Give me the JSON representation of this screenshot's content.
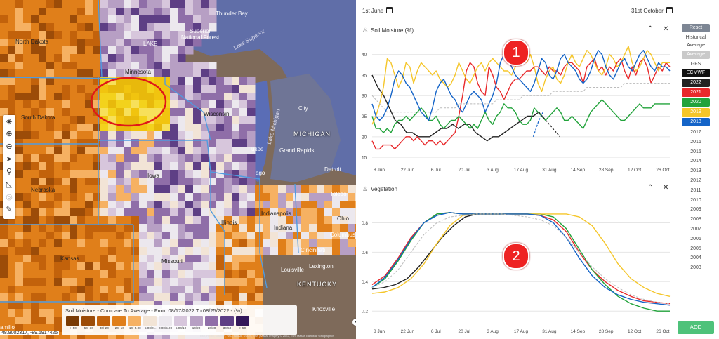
{
  "map": {
    "labels": {
      "thunder_bay": "Thunder Bay",
      "superior_forest": "Superior\nNational Forest",
      "lake_superior": "Lake Superior",
      "lake": "LAKE",
      "north_dakota": "North Dakota",
      "south_dakota": "South Dakota",
      "minnesota": "Minnesota",
      "wisconsin": "Wisconsin",
      "michigan": "MICHIGAN",
      "grand_rapids": "Grand Rapids",
      "lake_michigan": "Lake Michigan",
      "milwaukee": "ukee",
      "chicago": "ago",
      "iowa": "Iowa",
      "nebraska": "Nebraska",
      "kansas": "Kansas",
      "missouri": "Missouri",
      "illinois": "Illinois",
      "indiana": "Indiana",
      "ohio": "Ohio",
      "kentucky": "KENTUCKY",
      "lexington": "Lexington",
      "louisville": "Louisville",
      "knoxville": "Knoxville",
      "city": "City",
      "toledo": "Toledo",
      "detroit": "Detroit",
      "columbus": "Columbus",
      "cincinnati": "Cincinnati",
      "indianapolis": "Indianapolis"
    },
    "toolbar_icons": [
      "layers-icon",
      "zoom-in-icon",
      "zoom-out-icon",
      "navigate-icon",
      "search-icon",
      "ruler-icon",
      "locate-icon",
      "draw-icon"
    ],
    "legend": {
      "title": "Soil Moisture - Compare To Average - From 08/17/2022 To 08/25/2022 - (%)",
      "swatches": [
        {
          "label": "< -50",
          "color": "#7a3b05"
        },
        {
          "label": "-50/-30",
          "color": "#9c4c08"
        },
        {
          "label": "-30/-20",
          "color": "#c2620b"
        },
        {
          "label": "-20/-10",
          "color": "#e07f1a"
        },
        {
          "label": "-10/-5.00",
          "color": "#f6b162"
        },
        {
          "label": "-5.00/0...",
          "color": "#f2e4d6"
        },
        {
          "label": "0.00/5.00",
          "color": "#ece8ee"
        },
        {
          "label": "5.00/10",
          "color": "#d7c6dc"
        },
        {
          "label": "10/20",
          "color": "#b79fc4"
        },
        {
          "label": "20/30",
          "color": "#8f6ea8"
        },
        {
          "label": "30/50",
          "color": "#5e3f85"
        },
        {
          "label": "> 50",
          "color": "#33175a"
        }
      ]
    },
    "coords": "48.9002317, -89.6917425",
    "attribution": "Esri, HERE, Garmin, FAO, NOAA, USGS, EPA | Maxar Imagery © 2022, Esri, Maxar, Earthstar Geographics",
    "left_edge_label": "amillo"
  },
  "dates": {
    "start": "1st June",
    "end": "31st October"
  },
  "soil_panel": {
    "title": "Soil Moisture (%)"
  },
  "veg_panel": {
    "title": "Vegetation"
  },
  "annotations": {
    "badge_1": "1",
    "badge_2": "2"
  },
  "x_ticks": [
    "8 Jun",
    "22 Jun",
    "6 Jul",
    "20 Jul",
    "3 Aug",
    "17 Aug",
    "31 Aug",
    "14 Sep",
    "28 Sep",
    "12 Oct",
    "26 Oct"
  ],
  "sidebar": {
    "reset": "Reset",
    "historical": "Historical\nAverage",
    "average": "Average",
    "gfs": "GFS",
    "ecmwf": "ECMWF",
    "years_active": [
      {
        "label": "2022",
        "color": "#222222"
      },
      {
        "label": "2021",
        "color": "#e8292b"
      },
      {
        "label": "2020",
        "color": "#22a33b"
      },
      {
        "label": "2019",
        "color": "#f5c62a"
      },
      {
        "label": "2018",
        "color": "#1464c8"
      }
    ],
    "years_inactive": [
      "2017",
      "2016",
      "2015",
      "2014",
      "2013",
      "2012",
      "2011",
      "2010",
      "2009",
      "2008",
      "2007",
      "2006",
      "2005",
      "2004",
      "2003"
    ],
    "add": "ADD"
  },
  "chart_data": [
    {
      "type": "line",
      "title": "Soil Moisture (%)",
      "x_start": "2022-06-01",
      "x_ticks": [
        "8 Jun",
        "22 Jun",
        "6 Jul",
        "20 Jul",
        "3 Aug",
        "17 Aug",
        "31 Aug",
        "14 Sep",
        "28 Sep",
        "12 Oct",
        "26 Oct"
      ],
      "ylim": [
        14,
        43
      ],
      "yticks": [
        15,
        20,
        25,
        30,
        35,
        40
      ],
      "grid": true,
      "series": [
        {
          "name": "2022",
          "color": "#222222",
          "values": [
            35,
            32,
            30,
            27,
            24,
            23,
            21,
            21,
            20,
            20,
            20,
            21,
            22,
            22,
            23,
            22,
            23,
            23,
            21,
            20,
            19,
            20,
            20,
            21,
            22,
            23,
            24,
            25,
            25,
            26
          ]
        },
        {
          "name": "2021",
          "color": "#e8292b",
          "values": [
            19,
            17,
            17,
            18,
            18,
            18,
            17,
            18,
            19,
            20,
            20,
            19,
            20,
            19,
            18,
            19,
            19,
            18,
            19,
            18,
            19,
            20,
            21,
            25,
            30,
            36,
            38,
            37,
            33,
            31,
            30,
            37,
            35,
            32,
            31,
            29,
            31,
            33,
            34,
            34,
            35,
            36,
            36,
            37,
            37,
            36,
            35,
            37,
            36,
            36,
            35,
            37,
            38,
            38,
            37,
            36,
            33,
            37,
            38,
            39,
            36,
            37,
            35,
            37,
            36,
            38,
            39,
            36,
            34,
            37,
            35,
            38,
            39,
            37,
            33,
            35,
            37,
            36,
            38,
            37
          ]
        },
        {
          "name": "2020",
          "color": "#22a33b",
          "values": [
            25,
            22,
            22,
            21,
            22,
            21,
            23,
            24,
            24,
            25,
            24,
            25,
            26,
            27,
            26,
            24,
            24,
            25,
            23,
            22,
            23,
            24,
            24,
            25,
            24,
            23,
            22,
            23,
            22,
            24,
            26,
            24,
            23,
            25,
            26,
            28,
            27,
            27,
            26,
            24,
            23,
            23,
            24,
            27,
            26,
            25,
            24,
            25,
            26,
            27,
            26,
            24,
            24,
            25,
            24,
            23,
            22,
            24,
            26,
            27,
            28,
            29,
            28,
            27,
            26,
            25,
            24,
            24,
            25,
            26,
            27,
            28,
            27,
            27,
            27,
            28,
            28,
            28,
            28,
            28
          ]
        },
        {
          "name": "2019",
          "color": "#f5c62a",
          "values": [
            23,
            25,
            28,
            32,
            39,
            38,
            35,
            32,
            34,
            38,
            37,
            33,
            36,
            38,
            37,
            36,
            35,
            36,
            34,
            33,
            32,
            33,
            35,
            38,
            36,
            34,
            33,
            35,
            37,
            38,
            36,
            38,
            39,
            38,
            37,
            36,
            36,
            35,
            37,
            40,
            39,
            38,
            40,
            37,
            33,
            31,
            34,
            36,
            37,
            34,
            33,
            35,
            38,
            40,
            38,
            37,
            39,
            41,
            40,
            38,
            36,
            35,
            37,
            40,
            39,
            37,
            38,
            40,
            42,
            38,
            36,
            37,
            39,
            41,
            40,
            38,
            36,
            38,
            38,
            38
          ]
        },
        {
          "name": "2018",
          "color": "#1464c8",
          "values": [
            28,
            25,
            24,
            25,
            27,
            30,
            34,
            36,
            35,
            33,
            32,
            30,
            28,
            26,
            25,
            24,
            27,
            31,
            33,
            34,
            32,
            30,
            29,
            27,
            26,
            28,
            30,
            31,
            30,
            29,
            26,
            28,
            30,
            33,
            38,
            40,
            39,
            37,
            35,
            34,
            33,
            32,
            31,
            33,
            36,
            39,
            38,
            35,
            34,
            36,
            39,
            40,
            38,
            37,
            36,
            34,
            33,
            34,
            36,
            39,
            41,
            40,
            37,
            35,
            34,
            36,
            38,
            39,
            37,
            36,
            38,
            40,
            41,
            39,
            37,
            36,
            38,
            37,
            37,
            36
          ]
        },
        {
          "name": "Historical Average",
          "color": "#bbbbbb",
          "values": [
            30,
            29,
            28,
            27,
            26,
            26,
            26,
            26,
            26,
            26,
            26,
            26,
            26,
            26,
            26,
            26,
            26,
            26,
            27,
            27,
            27,
            27,
            27,
            28,
            28,
            28,
            28,
            28,
            28,
            28,
            28,
            28,
            28,
            29,
            29,
            29,
            29,
            29,
            29,
            29,
            30,
            30,
            30,
            30,
            30,
            30,
            30,
            30,
            31,
            31,
            31,
            31,
            31,
            31,
            31,
            31,
            31,
            32,
            32,
            32,
            32,
            32,
            32,
            32,
            32,
            32,
            32,
            33,
            33,
            33,
            33,
            33,
            33,
            33,
            33,
            33,
            33,
            33,
            33,
            33
          ]
        }
      ]
    },
    {
      "type": "line",
      "title": "Vegetation",
      "x_ticks": [
        "8 Jun",
        "22 Jun",
        "6 Jul",
        "20 Jul",
        "3 Aug",
        "17 Aug",
        "31 Aug",
        "14 Sep",
        "28 Sep",
        "12 Oct",
        "26 Oct"
      ],
      "ylim": [
        0.12,
        0.95
      ],
      "yticks": [
        0.2,
        0.4,
        0.6,
        0.8
      ],
      "grid": true,
      "series": [
        {
          "name": "2022",
          "color": "#222222",
          "values": [
            0.35,
            0.36,
            0.38,
            0.42,
            0.5,
            0.6,
            0.7,
            0.78,
            0.84,
            0.86,
            0.86,
            0.86
          ]
        },
        {
          "name": "2021",
          "color": "#e8292b",
          "values": [
            0.38,
            0.44,
            0.56,
            0.7,
            0.8,
            0.86,
            0.87,
            0.86,
            0.86,
            0.86,
            0.86,
            0.86,
            0.86,
            0.85,
            0.82,
            0.74,
            0.6,
            0.48,
            0.4,
            0.34,
            0.3,
            0.27,
            0.26,
            0.25
          ]
        },
        {
          "name": "2020",
          "color": "#22a33b",
          "values": [
            0.36,
            0.42,
            0.54,
            0.68,
            0.8,
            0.86,
            0.87,
            0.86,
            0.86,
            0.86,
            0.86,
            0.86,
            0.86,
            0.86,
            0.84,
            0.76,
            0.62,
            0.48,
            0.38,
            0.3,
            0.25,
            0.22,
            0.2,
            0.2
          ]
        },
        {
          "name": "2019",
          "color": "#f5c62a",
          "values": [
            0.32,
            0.33,
            0.36,
            0.42,
            0.52,
            0.66,
            0.78,
            0.85,
            0.86,
            0.86,
            0.86,
            0.86,
            0.86,
            0.86,
            0.86,
            0.86,
            0.84,
            0.78,
            0.66,
            0.52,
            0.42,
            0.36,
            0.32,
            0.3
          ]
        },
        {
          "name": "2018",
          "color": "#1464c8",
          "values": [
            0.36,
            0.43,
            0.55,
            0.69,
            0.8,
            0.85,
            0.87,
            0.86,
            0.86,
            0.86,
            0.86,
            0.86,
            0.86,
            0.85,
            0.8,
            0.7,
            0.56,
            0.44,
            0.36,
            0.31,
            0.28,
            0.26,
            0.25,
            0.24
          ]
        },
        {
          "name": "Historical Average",
          "color": "#bbbbbb",
          "values": [
            0.36,
            0.4,
            0.48,
            0.6,
            0.72,
            0.8,
            0.84,
            0.85,
            0.86,
            0.86,
            0.86,
            0.85,
            0.84,
            0.82,
            0.78,
            0.7,
            0.6,
            0.5,
            0.42,
            0.36,
            0.31,
            0.28,
            0.26,
            0.25
          ]
        }
      ]
    }
  ]
}
